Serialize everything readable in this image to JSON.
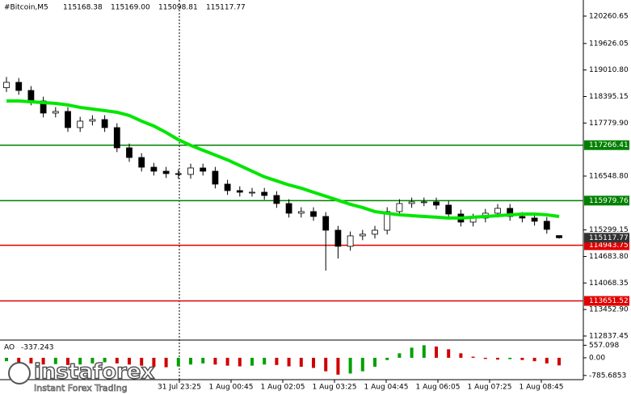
{
  "chart_data": {
    "type": "candlestick",
    "title": "#Bitcoin,M5",
    "header_ohlc": [
      "115168.38",
      "115169.00",
      "115098.81",
      "115117.77"
    ],
    "open": [
      118600,
      118724,
      118536,
      118292,
      118011,
      118049,
      117674,
      117824,
      117861,
      117674,
      117205,
      116980,
      116755,
      116662,
      116606,
      116587,
      116737,
      116662,
      116362,
      116212,
      116174,
      116174,
      116099,
      115912,
      115687,
      115725,
      115612,
      115293,
      114919,
      115162,
      115200,
      115293,
      115725,
      115912,
      115950,
      115950,
      115875,
      115668,
      115481,
      115575,
      115687,
      115800,
      115612,
      115575,
      115500,
      115168.38
    ],
    "high": [
      118850,
      118824,
      118636,
      118392,
      118149,
      118149,
      117924,
      117961,
      117961,
      117774,
      117305,
      117080,
      116855,
      116762,
      116706,
      116837,
      116837,
      116762,
      116462,
      116312,
      116274,
      116274,
      116199,
      116012,
      115825,
      115825,
      115712,
      115393,
      115262,
      115300,
      115393,
      115825,
      116012,
      116050,
      116050,
      116050,
      115975,
      115768,
      115675,
      115787,
      115900,
      115900,
      115712,
      115675,
      115600,
      115169.0
    ],
    "low": [
      118500,
      118436,
      118192,
      117911,
      117911,
      117574,
      117574,
      117724,
      117574,
      117105,
      116880,
      116655,
      116562,
      116506,
      116487,
      116487,
      116562,
      116262,
      116112,
      116074,
      116074,
      115999,
      115812,
      115587,
      115587,
      115512,
      114356,
      114637,
      114819,
      115062,
      115100,
      115193,
      115625,
      115812,
      115850,
      115775,
      115568,
      115381,
      115381,
      115475,
      115587,
      115512,
      115475,
      115400,
      115212,
      115098.81
    ],
    "close": [
      118724,
      118536,
      118292,
      118011,
      118049,
      117674,
      117824,
      117861,
      117674,
      117205,
      116980,
      116755,
      116662,
      116606,
      116587,
      116737,
      116662,
      116362,
      116212,
      116174,
      116174,
      116099,
      115912,
      115687,
      115725,
      115612,
      115293,
      114919,
      115162,
      115200,
      115293,
      115725,
      115912,
      115950,
      115950,
      115875,
      115668,
      115481,
      115575,
      115687,
      115800,
      115612,
      115575,
      115500,
      115312,
      115117.77
    ],
    "ylim": [
      112762,
      120635
    ],
    "yticks": [
      120260.65,
      119626.05,
      {
        "value": 119010.8,
        "label": "119010.80"
      },
      118395.15,
      {
        "value": 117779.9,
        "label": "117779.90"
      },
      {
        "value": 116548.8,
        "label": "116548.80"
      },
      115299.15,
      {
        "value": 114683.8,
        "label": "114683.80"
      },
      114068.35,
      {
        "value": 113452.9,
        "label": "113452.90"
      },
      112837.45
    ],
    "levels": [
      {
        "value": 117266.41,
        "color": "#008000"
      },
      {
        "value": 115979.76,
        "color": "#008000"
      },
      {
        "value": 114943.75,
        "color": "#e00000"
      },
      {
        "value": 113651.52,
        "color": "#e00000"
      }
    ],
    "ma": {
      "color": "#00e600",
      "values": [
        118292,
        118292,
        118274,
        118255,
        118236,
        118199,
        118143,
        118105,
        118068,
        118030,
        117955,
        117824,
        117711,
        117561,
        117393,
        117262,
        117149,
        117037,
        116924,
        116793,
        116662,
        116531,
        116437,
        116343,
        116268,
        116174,
        116081,
        115987,
        115893,
        115818,
        115725,
        115687,
        115650,
        115631,
        115612,
        115594,
        115575,
        115575,
        115594,
        115612,
        115631,
        115650,
        115668,
        115668,
        115650,
        115612
      ]
    },
    "x_labels": [
      "31 Jul 23:25",
      "1 Aug 00:45",
      "1 Aug 02:05",
      "1 Aug 03:25",
      "1 Aug 04:45",
      "1 Aug 06:05",
      "1 Aug 07:25",
      "1 Aug 08:45"
    ],
    "indicator": {
      "name": "AO",
      "up_color": "#00a000",
      "down_color": "#d00000",
      "ylim": [
        -900,
        680
      ],
      "yticks": [
        557.098,
        {
          "value": 0,
          "label": "0.00"
        },
        -785.6853
      ],
      "values": [
        -150,
        -200,
        -250,
        -300,
        -280,
        -320,
        -300,
        -250,
        -200,
        -250,
        -300,
        -350,
        -400,
        -420,
        -380,
        -300,
        -250,
        -300,
        -350,
        -380,
        -350,
        -300,
        -320,
        -380,
        -400,
        -450,
        -600,
        -750,
        -700,
        -600,
        -400,
        -100,
        200,
        450,
        557,
        500,
        380,
        200,
        50,
        -50,
        -80,
        -60,
        -100,
        -150,
        -250,
        -337.243
      ]
    }
  },
  "logo": {
    "name": "instaforex",
    "tagline": "Instant Forex Trading"
  }
}
